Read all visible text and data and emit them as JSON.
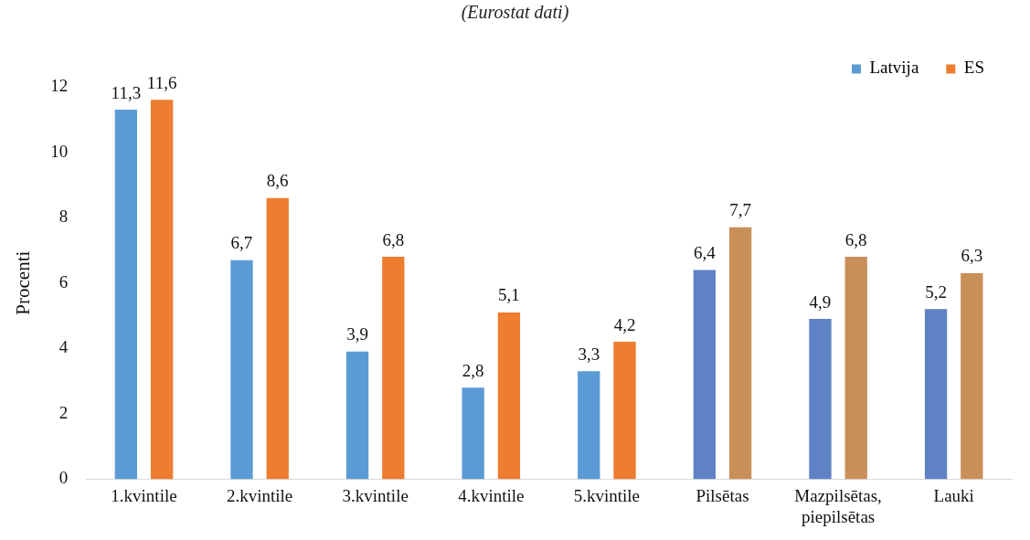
{
  "chart_data": {
    "type": "bar",
    "title": "(Eurostat dati)",
    "ylabel": "Procenti",
    "categories": [
      "1.kvintile",
      "2.kvintile",
      "3.kvintile",
      "4.kvintile",
      "5.kvintile",
      "Pilsētas",
      "Mazpilsētas, piepilsētas",
      "Lauki"
    ],
    "series": [
      {
        "name": "Latvija",
        "color": "#5b9bd5",
        "colors": [
          "#5b9bd5",
          "#5b9bd5",
          "#5b9bd5",
          "#5b9bd5",
          "#5b9bd5",
          "#5f82c4",
          "#5f82c4",
          "#5f82c4"
        ],
        "values": [
          11.3,
          6.7,
          3.9,
          2.8,
          3.3,
          6.4,
          4.9,
          5.2
        ],
        "value_labels": [
          "11,3",
          "6,7",
          "3,9",
          "2,8",
          "3,3",
          "6,4",
          "4,9",
          "5,2"
        ]
      },
      {
        "name": "ES",
        "color": "#ed7d31",
        "colors": [
          "#ed7d31",
          "#ed7d31",
          "#ed7d31",
          "#ed7d31",
          "#ed7d31",
          "#c98f58",
          "#c98f58",
          "#c98f58"
        ],
        "values": [
          11.6,
          8.6,
          6.8,
          5.1,
          4.2,
          7.7,
          6.8,
          6.3
        ],
        "value_labels": [
          "11,6",
          "8,6",
          "6,8",
          "5,1",
          "4,2",
          "7,7",
          "6,8",
          "6,3"
        ]
      }
    ],
    "ylim": [
      0,
      12
    ],
    "yticks": [
      0,
      2,
      4,
      6,
      8,
      10,
      12
    ],
    "grid": false,
    "legend": "top right"
  }
}
